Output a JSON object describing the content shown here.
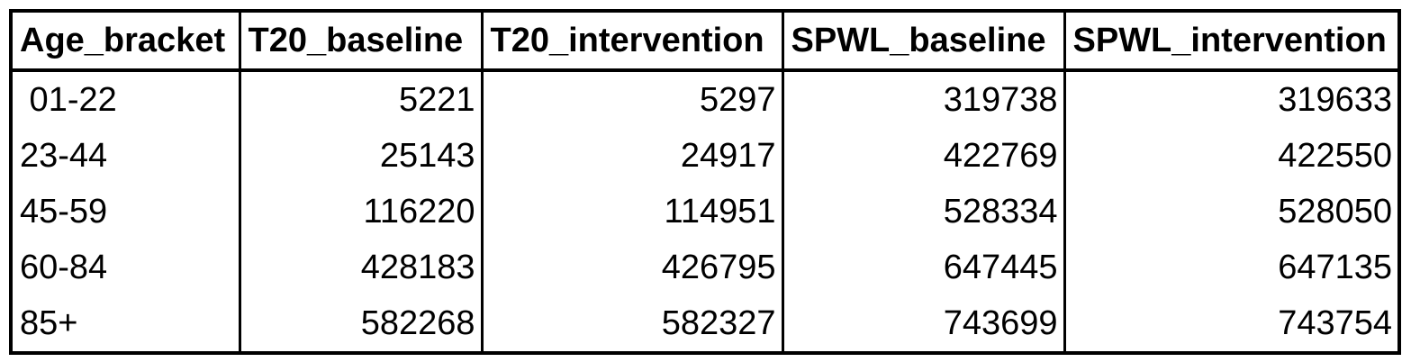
{
  "chart_data": {
    "type": "table",
    "columns": [
      "Age_bracket",
      "T20_baseline",
      "T20_intervention",
      "SPWL_baseline",
      "SPWL_intervention"
    ],
    "rows": [
      [
        " 01-22",
        "5221",
        "5297",
        "319738",
        "319633"
      ],
      [
        "23-44",
        "25143",
        "24917",
        "422769",
        "422550"
      ],
      [
        "45-59",
        "116220",
        "114951",
        "528334",
        "528050"
      ],
      [
        "60-84",
        "428183",
        "426795",
        "647445",
        "647135"
      ],
      [
        "85+",
        "582268",
        "582327",
        "743699",
        "743754"
      ]
    ]
  }
}
